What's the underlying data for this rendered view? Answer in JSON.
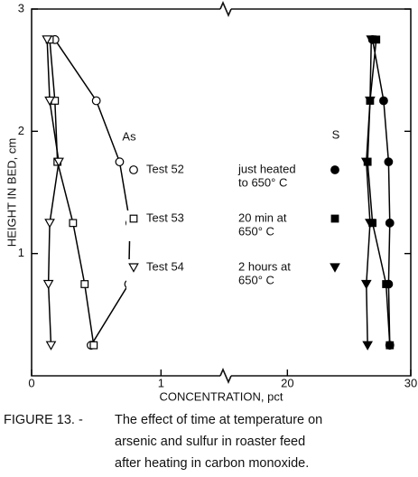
{
  "chart_data": {
    "type": "line",
    "ylabel": "HEIGHT IN BED, cm",
    "xlabel": "CONCENTRATION, pct",
    "ylim": [
      0,
      3
    ],
    "yticks": [
      1,
      2,
      3
    ],
    "color": "#000000",
    "y": [
      2.75,
      2.25,
      1.75,
      1.25,
      0.75,
      0.25
    ],
    "panels": [
      {
        "label": "As",
        "xlim": [
          0,
          1.5
        ],
        "xticks": [
          0,
          1
        ],
        "filled": false
      },
      {
        "label": "S",
        "xlim": [
          15,
          30
        ],
        "xticks": [
          20,
          30
        ],
        "filled": true
      }
    ],
    "series": [
      {
        "name": "Test 52",
        "note": [
          "just heated",
          "to 650° C"
        ],
        "marker": "circle",
        "x": [
          [
            0.18,
            0.5,
            0.68,
            0.76,
            0.75,
            0.46
          ],
          [
            26.9,
            27.8,
            28.2,
            28.3,
            28.2,
            28.3
          ]
        ]
      },
      {
        "name": "Test 53",
        "note": [
          "20 min at",
          "650° C"
        ],
        "marker": "square",
        "x": [
          [
            0.14,
            0.18,
            0.2,
            0.32,
            0.41,
            0.48
          ],
          [
            27.2,
            26.7,
            26.5,
            26.9,
            28.0,
            28.3
          ]
        ]
      },
      {
        "name": "Test 54",
        "note": [
          "2 hours at",
          "650° C"
        ],
        "marker": "triangle",
        "x": [
          [
            0.12,
            0.14,
            0.21,
            0.14,
            0.13,
            0.15
          ],
          [
            26.8,
            26.7,
            26.4,
            26.7,
            26.4,
            26.5
          ]
        ]
      }
    ],
    "caption": {
      "label": "FIGURE 13. -",
      "lines": [
        "The effect of time at temperature on",
        "arsenic and sulfur in roaster feed",
        "after heating in carbon monoxide."
      ]
    }
  }
}
